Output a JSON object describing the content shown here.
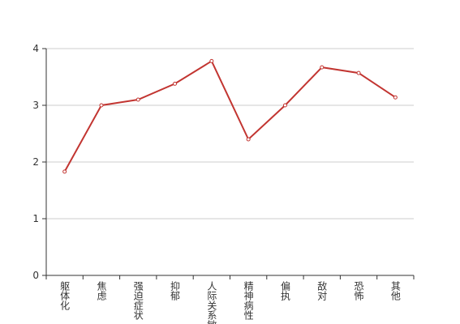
{
  "chart_data": {
    "type": "line",
    "categories": [
      "躯体化",
      "焦虑",
      "强迫症状",
      "抑郁",
      "人际关系敏感",
      "精神病性",
      "偏执",
      "敌对",
      "恐怖",
      "其他"
    ],
    "series": [
      {
        "color": "#c23531",
        "values": [
          1.83,
          3.0,
          3.1,
          3.38,
          3.78,
          2.4,
          3.0,
          3.67,
          3.57,
          3.14
        ]
      }
    ],
    "ylim": [
      0,
      4
    ],
    "yticks": [
      0,
      1,
      2,
      3,
      4
    ],
    "grid": true
  }
}
